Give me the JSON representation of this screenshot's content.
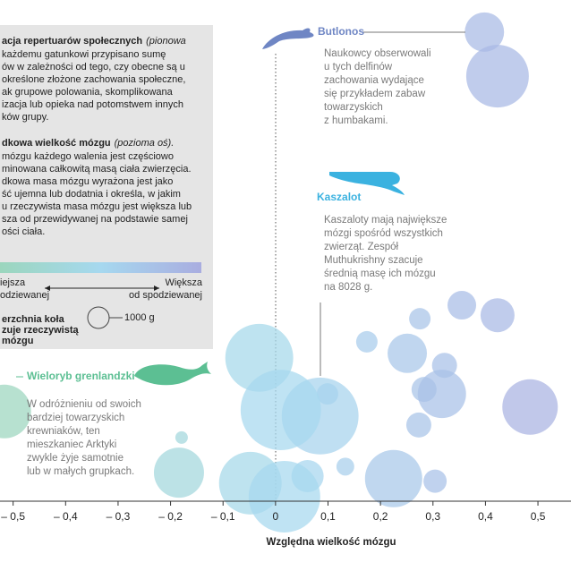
{
  "chart_data": {
    "type": "bubble",
    "xlabel": "Względna wielkość mózgu",
    "xlim": [
      -0.525,
      0.563
    ],
    "xticks": [
      {
        "value": -0.5,
        "label": "– 0,5"
      },
      {
        "value": -0.4,
        "label": "– 0,4"
      },
      {
        "value": -0.3,
        "label": "– 0,3"
      },
      {
        "value": -0.2,
        "label": "– 0,2"
      },
      {
        "value": -0.1,
        "label": "– 0,1"
      },
      0,
      {
        "value": 0.1,
        "label": "0,1"
      },
      {
        "value": 0.2,
        "label": "0,2"
      },
      {
        "value": 0.3,
        "label": "0,3"
      },
      {
        "value": 0.4,
        "label": "0,4"
      },
      {
        "value": 0.5,
        "label": "0,5"
      }
    ],
    "ylim": [
      0,
      100
    ],
    "color_scale": [
      "#9bd6bd",
      "#a6d8ef",
      "#a9ade0"
    ],
    "x": [
      0.398,
      0.423,
      0.355,
      0.423,
      0.275,
      0.174,
      0.251,
      0.322,
      -0.031,
      0.099,
      0.085,
      0.01,
      0.283,
      0.317,
      0.485,
      0.273,
      -0.517,
      -0.179,
      0.133,
      0.225,
      0.304,
      0.061,
      -0.184,
      -0.048,
      0.017
    ],
    "values": [
      93.6,
      84.8,
      39.1,
      37.1,
      36.4,
      31.8,
      29.5,
      27.1,
      28.6,
      21.4,
      17.0,
      18.2,
      22.3,
      21.4,
      18.8,
      15.2,
      17.9,
      12.7,
      6.9,
      4.5,
      4.0,
      5.0,
      5.7,
      3.6,
      0.9
    ],
    "sizes": [
      3360,
      8500,
      1780,
      2510,
      1000,
      1000,
      3360,
      1360,
      10000,
      1000,
      12800,
      14000,
      1360,
      5060,
      6670,
      1360,
      6250,
      340,
      690,
      7110,
      1170,
      2250,
      5440,
      8500,
      11100
    ],
    "size_reference": 1000,
    "annotations": [
      {
        "title": "Butlonos",
        "color": "#6f86c4",
        "lines": [
          "Naukowcy obserwowali",
          "u tych delfinów",
          "zachowania wydające",
          "się przykładem zabaw",
          "towarzyskich",
          "z humbakami."
        ]
      },
      {
        "title": "Kaszalot",
        "color": "#3bb2e0",
        "lines": [
          "Kaszaloty mają największe",
          "mózgi spośród wszystkich",
          "zwierząt. Zespół",
          "Muthukrishny szacuje",
          "średnią masę ich mózgu",
          "na 8028 g."
        ]
      },
      {
        "title": "Wieloryb grenlandzki",
        "color": "#5cbf93",
        "lines": [
          "W odróżnieniu od swoich",
          "bardziej towarzyskich",
          "krewniaków, ten",
          "mieszkaniec Arktyki",
          "zwykle żyje samotnie",
          "lub w małych grupkach."
        ]
      }
    ],
    "legend_panel": {
      "vertical_heading": "acja repertuarów społecznych",
      "vertical_note": "(pionowa",
      "vertical_text": [
        "każdemu gatunkowi przypisano sumę",
        "ów w zależności od tego, czy obecne są u",
        "określone złożone zachowania społeczne,",
        "ak grupowe polowania, skomplikowana",
        "izacja lub opieka nad potomstwem innych",
        "ków grupy."
      ],
      "horizontal_heading": "dkowa wielkość mózgu",
      "horizontal_note": "(pozioma oś).",
      "horizontal_text": [
        "mózgu każdego walenia jest częściowo",
        "minowana całkowitą masą ciała zwierzęcia.",
        "dkowa masa mózgu wyrażona jest jako",
        "ść ujemna lub dodatnia i określa, w jakim",
        "u rzeczywista masa mózgu jest większa lub",
        "sza od przewidywanej na podstawie samej",
        "ości ciała."
      ],
      "scale_low": [
        "iejsza",
        "odziewanej"
      ],
      "scale_high": [
        "Większa",
        "od spodziewanej"
      ],
      "size_heading": [
        "erzchnia koła",
        "zuje rzeczywistą",
        "mózgu"
      ],
      "size_label": "1000 g"
    }
  }
}
